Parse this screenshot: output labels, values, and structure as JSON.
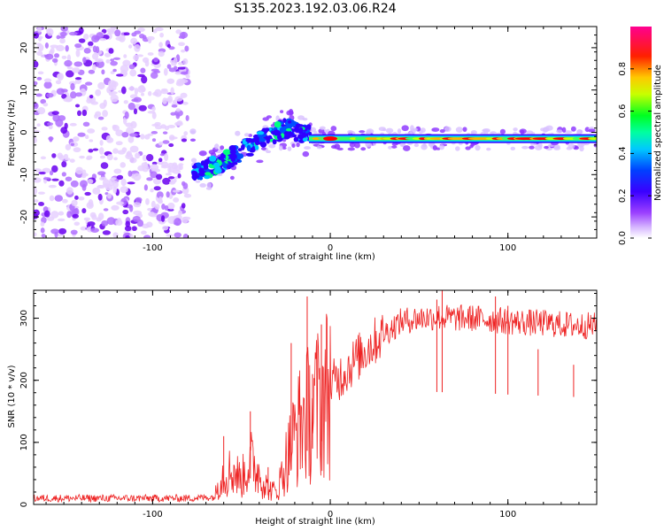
{
  "title": "S135.2023.192.03.06.R24",
  "chart_data": [
    {
      "type": "heatmap",
      "xlabel": "Height of straight line (km)",
      "ylabel": "Frequency (Hz)",
      "xlim": [
        -167,
        150
      ],
      "ylim": [
        -25,
        25
      ],
      "xticks": [
        -100,
        0,
        100
      ],
      "yticks": [
        -20,
        -10,
        0,
        10,
        20
      ],
      "colorbar": {
        "label": "Normalized spectral amplitude",
        "range": [
          0,
          1
        ],
        "ticks": [
          0.0,
          0.2,
          0.4,
          0.6,
          0.8
        ],
        "tick_labels": [
          "0.0",
          "0.2",
          "0.4",
          "0.6",
          "0.8"
        ],
        "colormap": [
          "#ffffff",
          "#b060ff",
          "#6000ff",
          "#0000ff",
          "#00c8ff",
          "#00ff40",
          "#c8ff00",
          "#ffaa00",
          "#ff2000",
          "#ff0090"
        ]
      },
      "features": {
        "noise_region_x": [
          -167,
          -80
        ],
        "noise_freq_range": [
          -25,
          25
        ],
        "drift_line": {
          "x": [
            -77,
            -60,
            -40,
            -25,
            -10,
            0,
            150
          ],
          "freq": [
            -10,
            -7,
            -2,
            1,
            -1,
            -1.5,
            -1.5
          ]
        }
      },
      "color_max": "#ff0000",
      "grid": false
    },
    {
      "type": "line",
      "xlabel": "Height of straight line (km)",
      "ylabel": "SNR (10 * v/v)",
      "xlim": [
        -167,
        150
      ],
      "ylim": [
        0,
        345
      ],
      "xticks": [
        -100,
        0,
        100
      ],
      "yticks": [
        0,
        100,
        200,
        300
      ],
      "series": [
        {
          "color": "#ee2222",
          "x": [
            -167,
            -140,
            -110,
            -80,
            -65,
            -62,
            -55,
            -50,
            -45,
            -40,
            -35,
            -30,
            -25,
            -20,
            -15,
            -10,
            -5,
            0,
            10,
            20,
            30,
            40,
            50,
            60,
            70,
            80,
            90,
            100,
            110,
            120,
            130,
            140,
            150
          ],
          "y": [
            10,
            10,
            10,
            10,
            12,
            45,
            55,
            40,
            70,
            50,
            25,
            20,
            70,
            110,
            140,
            150,
            170,
            190,
            220,
            250,
            275,
            295,
            300,
            302,
            300,
            300,
            298,
            295,
            293,
            292,
            290,
            288,
            288
          ],
          "spikes": [
            [
              -60,
              110
            ],
            [
              -45,
              150
            ],
            [
              -35,
              60
            ],
            [
              -22,
              260
            ],
            [
              -13,
              335
            ],
            [
              -10,
              210
            ],
            [
              -5,
              290
            ],
            [
              63,
              345
            ],
            [
              60,
              330
            ],
            [
              93,
              335
            ],
            [
              100,
              320
            ],
            [
              117,
              250
            ],
            [
              137,
              225
            ]
          ]
        }
      ],
      "grid": false
    }
  ]
}
